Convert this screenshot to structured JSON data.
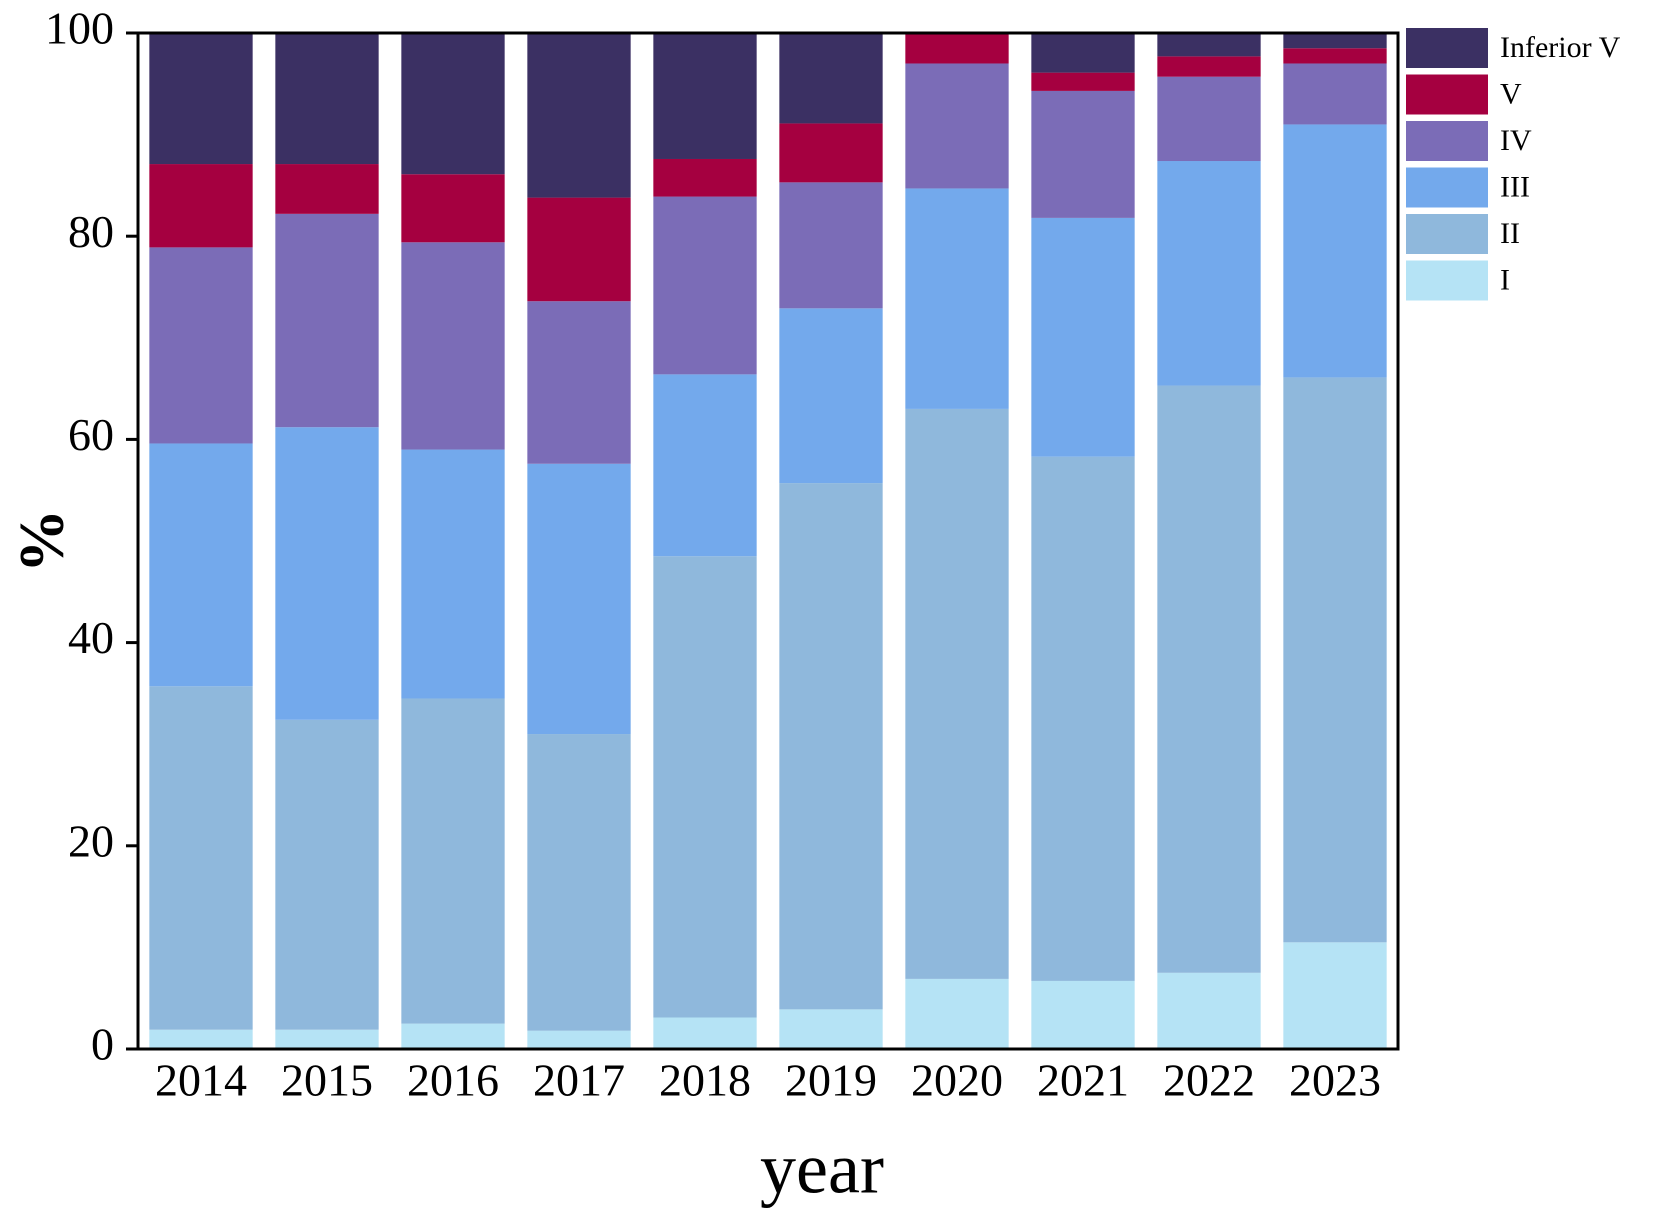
{
  "chart_data": {
    "type": "stacked_bar",
    "x_label": "year",
    "y_label": "%",
    "categories": [
      "2014",
      "2015",
      "2016",
      "2017",
      "2018",
      "2019",
      "2020",
      "2021",
      "2022",
      "2023"
    ],
    "series": [
      {
        "name": "I",
        "color": "#b5e3f5",
        "values": [
          1.9,
          1.9,
          2.5,
          1.8,
          3.1,
          3.9,
          6.9,
          6.7,
          7.5,
          10.5
        ]
      },
      {
        "name": "II",
        "color": "#8fb8dc",
        "values": [
          33.8,
          30.5,
          32.0,
          29.2,
          45.4,
          51.8,
          56.1,
          51.6,
          57.8,
          55.6
        ]
      },
      {
        "name": "III",
        "color": "#73a9ec",
        "values": [
          23.9,
          28.8,
          24.5,
          26.6,
          17.9,
          17.2,
          21.7,
          23.5,
          22.1,
          24.9
        ]
      },
      {
        "name": "IV",
        "color": "#7b6cb7",
        "values": [
          19.3,
          21.0,
          20.4,
          16.0,
          17.5,
          12.4,
          12.3,
          12.5,
          8.3,
          6.0
        ]
      },
      {
        "name": "V",
        "color": "#a50040",
        "values": [
          8.2,
          4.9,
          6.7,
          10.2,
          3.7,
          5.8,
          3.0,
          1.8,
          2.0,
          1.5
        ]
      },
      {
        "name": "Inferior V",
        "color": "#3b3063",
        "values": [
          12.9,
          12.9,
          13.9,
          16.2,
          12.4,
          8.9,
          0,
          3.9,
          2.3,
          1.5
        ]
      }
    ],
    "ylim": [
      0,
      100
    ],
    "yticks": [
      0,
      20,
      40,
      60,
      80,
      100
    ],
    "legend": "right"
  }
}
